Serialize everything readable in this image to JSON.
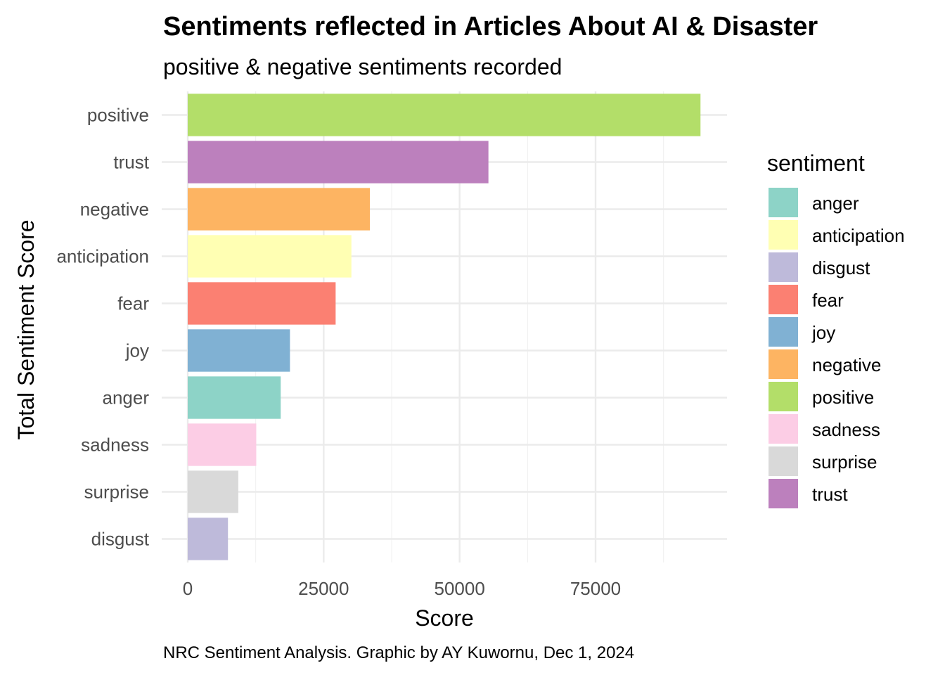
{
  "chart_data": {
    "type": "bar",
    "orientation": "horizontal",
    "title": "Sentiments reflected in Articles About AI & Disaster",
    "subtitle": "positive & negative sentiments recorded",
    "xlabel": "Score",
    "ylabel": "Total Sentiment Score",
    "caption": "NRC Sentiment Analysis. Graphic by AY Kuwornu, Dec 1, 2024",
    "xlim": [
      0,
      99000
    ],
    "x_ticks": [
      {
        "value": 0,
        "label": "0"
      },
      {
        "value": 25000,
        "label": "25000"
      },
      {
        "value": 50000,
        "label": "50000"
      },
      {
        "value": 75000,
        "label": "75000"
      }
    ],
    "categories": [
      "positive",
      "trust",
      "negative",
      "anticipation",
      "fear",
      "joy",
      "anger",
      "sadness",
      "surprise",
      "disgust"
    ],
    "values": [
      94300,
      55300,
      33500,
      30100,
      27200,
      18800,
      17100,
      12600,
      9300,
      7400
    ],
    "colors": {
      "anger": "#8DD3C7",
      "anticipation": "#FFFFB3",
      "disgust": "#BEBADA",
      "fear": "#FB8072",
      "joy": "#80B1D3",
      "negative": "#FDB462",
      "positive": "#B3DE69",
      "sadness": "#FCCDE5",
      "surprise": "#D9D9D9",
      "trust": "#BC80BD"
    },
    "legend": {
      "title": "sentiment",
      "position": "right",
      "entries": [
        "anger",
        "anticipation",
        "disgust",
        "fear",
        "joy",
        "negative",
        "positive",
        "sadness",
        "surprise",
        "trust"
      ]
    },
    "grid": true
  }
}
